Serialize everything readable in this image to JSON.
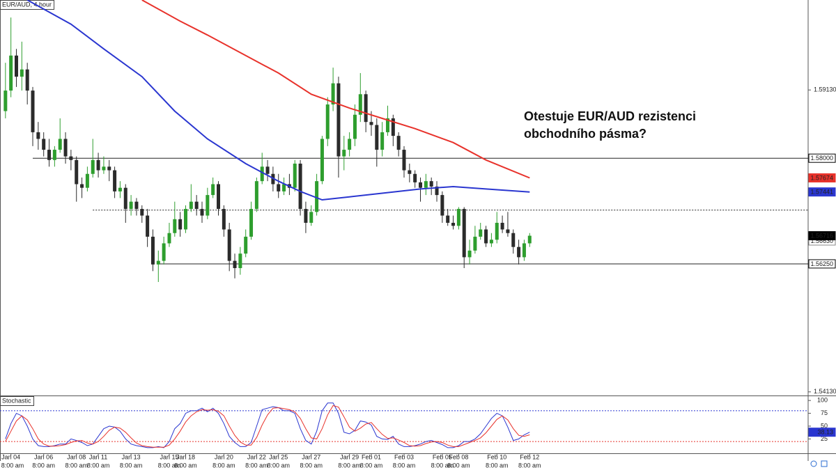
{
  "chart_data": [
    {
      "type": "candlestick",
      "title": "EUR/AUD, 4 hour",
      "annotation": [
        "Otestuje EUR/AUD rezistenci",
        "obchodního pásma?"
      ],
      "open": [
        1.5878,
        1.5912,
        1.597,
        1.5935,
        1.5947,
        1.5912,
        1.5843,
        1.5832,
        1.5814,
        1.5797,
        1.5814,
        1.5832,
        1.5803,
        1.5797,
        1.5757,
        1.5751,
        1.5774,
        1.5797,
        1.578,
        1.5786,
        1.578,
        1.5745,
        1.5751,
        1.5716,
        1.5728,
        1.5716,
        1.5705,
        1.567,
        1.5624,
        1.563,
        1.5659,
        1.5676,
        1.5699,
        1.5682,
        1.5716,
        1.5728,
        1.5716,
        1.5705,
        1.5739,
        1.5757,
        1.5716,
        1.5682,
        1.563,
        1.5618,
        1.5642,
        1.567,
        1.5716,
        1.5762,
        1.5786,
        1.5774,
        1.5757,
        1.5745,
        1.5757,
        1.5751,
        1.5791,
        1.5716,
        1.5693,
        1.5711,
        1.5762,
        1.5832,
        1.5889,
        1.5924,
        1.5803,
        1.5814,
        1.5832,
        1.5872,
        1.5906,
        1.586,
        1.5855,
        1.5814,
        1.5843,
        1.5866,
        1.5837,
        1.5814,
        1.578,
        1.5774,
        1.576,
        1.5751,
        1.5762,
        1.5753,
        1.5739,
        1.5705,
        1.5693,
        1.5688,
        1.5716,
        1.5636,
        1.5647,
        1.567,
        1.5682,
        1.5659,
        1.5665,
        1.5693,
        1.5682,
        1.5676,
        1.5653,
        1.5636,
        1.5659
      ],
      "high": [
        1.5958,
        1.6033,
        1.5981,
        1.5993,
        1.5958,
        1.5918,
        1.586,
        1.5843,
        1.5832,
        1.582,
        1.5866,
        1.5843,
        1.5814,
        1.5803,
        1.5768,
        1.5786,
        1.5832,
        1.5809,
        1.5803,
        1.5797,
        1.5786,
        1.5762,
        1.5757,
        1.5739,
        1.5734,
        1.5722,
        1.5716,
        1.5682,
        1.5647,
        1.567,
        1.5693,
        1.5728,
        1.5711,
        1.5722,
        1.5757,
        1.5739,
        1.5728,
        1.5751,
        1.5768,
        1.5762,
        1.5722,
        1.5693,
        1.5642,
        1.5653,
        1.5682,
        1.5728,
        1.5768,
        1.5809,
        1.5797,
        1.5786,
        1.5774,
        1.5768,
        1.5774,
        1.5797,
        1.5797,
        1.5728,
        1.5722,
        1.5774,
        1.5837,
        1.5901,
        1.595,
        1.5935,
        1.5837,
        1.5843,
        1.5889,
        1.5941,
        1.5912,
        1.5878,
        1.5866,
        1.586,
        1.5887,
        1.5872,
        1.5843,
        1.582,
        1.5791,
        1.578,
        1.5768,
        1.5774,
        1.5768,
        1.5762,
        1.5745,
        1.5716,
        1.5705,
        1.5719,
        1.5719,
        1.5665,
        1.5688,
        1.5693,
        1.5688,
        1.5676,
        1.5711,
        1.5705,
        1.5711,
        1.5682,
        1.5665,
        1.5665,
        1.5676
      ],
      "low": [
        1.5866,
        1.5901,
        1.5918,
        1.5912,
        1.5889,
        1.582,
        1.5814,
        1.5803,
        1.5786,
        1.5786,
        1.5809,
        1.5791,
        1.578,
        1.5728,
        1.5734,
        1.5745,
        1.5768,
        1.5768,
        1.5774,
        1.5762,
        1.5734,
        1.5734,
        1.5693,
        1.5705,
        1.5705,
        1.5693,
        1.5653,
        1.5613,
        1.5595,
        1.5624,
        1.5653,
        1.567,
        1.567,
        1.5676,
        1.5711,
        1.5705,
        1.5693,
        1.5699,
        1.5734,
        1.5705,
        1.567,
        1.5613,
        1.5601,
        1.5607,
        1.5636,
        1.5665,
        1.5711,
        1.5757,
        1.5762,
        1.5745,
        1.5734,
        1.5739,
        1.5739,
        1.5745,
        1.5705,
        1.5676,
        1.5688,
        1.5705,
        1.5757,
        1.582,
        1.5878,
        1.5768,
        1.578,
        1.5803,
        1.582,
        1.586,
        1.5843,
        1.5837,
        1.5786,
        1.5803,
        1.5837,
        1.582,
        1.5803,
        1.5768,
        1.576,
        1.5751,
        1.5728,
        1.5739,
        1.5739,
        1.5728,
        1.5693,
        1.5688,
        1.5682,
        1.5682,
        1.5618,
        1.5624,
        1.5642,
        1.5665,
        1.5653,
        1.5653,
        1.5659,
        1.5676,
        1.567,
        1.5642,
        1.5624,
        1.563,
        1.5653
      ],
      "close": [
        1.5912,
        1.597,
        1.5935,
        1.5947,
        1.5912,
        1.5843,
        1.5832,
        1.5814,
        1.5797,
        1.5814,
        1.5832,
        1.5803,
        1.5797,
        1.5757,
        1.5751,
        1.5774,
        1.5797,
        1.578,
        1.5786,
        1.578,
        1.5745,
        1.5751,
        1.5716,
        1.5728,
        1.5716,
        1.5705,
        1.567,
        1.5624,
        1.563,
        1.5659,
        1.5676,
        1.5699,
        1.5682,
        1.5716,
        1.5728,
        1.5716,
        1.5705,
        1.5739,
        1.5757,
        1.5716,
        1.5682,
        1.563,
        1.5618,
        1.5642,
        1.567,
        1.5716,
        1.5762,
        1.5786,
        1.5774,
        1.5757,
        1.5745,
        1.5757,
        1.5751,
        1.5791,
        1.5716,
        1.5693,
        1.5711,
        1.5762,
        1.5832,
        1.5889,
        1.5924,
        1.5803,
        1.5814,
        1.5832,
        1.5872,
        1.5906,
        1.586,
        1.5855,
        1.5814,
        1.5843,
        1.5866,
        1.5837,
        1.5814,
        1.578,
        1.5774,
        1.576,
        1.5751,
        1.5762,
        1.5753,
        1.5739,
        1.5705,
        1.5693,
        1.5688,
        1.5716,
        1.5636,
        1.5647,
        1.567,
        1.5682,
        1.5659,
        1.5665,
        1.5693,
        1.5682,
        1.5676,
        1.5653,
        1.5636,
        1.5659,
        1.56716
      ],
      "up_color": "#2e9e2e",
      "down_color": "#2b2b2b",
      "lines": [
        {
          "color": "#e8322b",
          "x": [
            25,
            32,
            37,
            44,
            50,
            56,
            63,
            69,
            75,
            82,
            88,
            96
          ],
          "values": [
            1.6062,
            1.6027,
            1.6004,
            1.597,
            1.5941,
            1.5906,
            1.5883,
            1.5866,
            1.5849,
            1.5826,
            1.5797,
            1.57674
          ]
        },
        {
          "color": "#2a36d0",
          "x": [
            4,
            12,
            18,
            25,
            31,
            37,
            44,
            50,
            54,
            58,
            63,
            69,
            76,
            82,
            88,
            96
          ],
          "values": [
            1.6062,
            1.6022,
            1.5981,
            1.5935,
            1.5878,
            1.5832,
            1.5791,
            1.5762,
            1.5745,
            1.5731,
            1.5736,
            1.5742,
            1.5749,
            1.5753,
            1.5749,
            1.57441
          ]
        }
      ],
      "levels": [
        {
          "value": 1.58,
          "label": "1.58000",
          "from": 5,
          "style": "solid"
        },
        {
          "value": 1.5714,
          "from": 16,
          "style": "dotted"
        },
        {
          "value": 1.5625,
          "label": "1.56250",
          "from": 28,
          "style": "solid"
        }
      ],
      "price_labels": [
        {
          "value": 1.5663,
          "label": "1.56630"
        }
      ],
      "xlim": [
        -1,
        147
      ],
      "ylim": [
        1.5407,
        1.6062
      ],
      "yticks": [
        {
          "value": 1.5913,
          "label": "1.59130"
        },
        {
          "value": 1.5413,
          "label": "1.54130"
        }
      ]
    },
    {
      "type": "line",
      "title": "Stochastic",
      "series": [
        {
          "color": "#2a36d0",
          "values": [
            25,
            55,
            75,
            70,
            50,
            25,
            12,
            10,
            10,
            12,
            15,
            15,
            25,
            22,
            18,
            12,
            15,
            30,
            45,
            50,
            48,
            40,
            25,
            15,
            12,
            10,
            8,
            8,
            10,
            8,
            20,
            45,
            55,
            75,
            80,
            80,
            85,
            78,
            85,
            75,
            55,
            30,
            18,
            10,
            10,
            18,
            50,
            82,
            85,
            88,
            86,
            80,
            80,
            75,
            45,
            22,
            15,
            40,
            80,
            95,
            95,
            75,
            38,
            35,
            42,
            60,
            58,
            52,
            30,
            25,
            24,
            30,
            15,
            10,
            10,
            12,
            15,
            20,
            22,
            18,
            14,
            8,
            8,
            12,
            20,
            20,
            25,
            35,
            50,
            65,
            75,
            70,
            48,
            22,
            25,
            33,
            38.13
          ]
        },
        {
          "color": "#e8322b",
          "values": [
            20,
            40,
            60,
            70,
            62,
            45,
            25,
            15,
            11,
            11,
            12,
            14,
            18,
            21,
            22,
            17,
            15,
            20,
            30,
            42,
            48,
            46,
            38,
            27,
            17,
            12,
            10,
            9,
            9,
            9,
            13,
            25,
            40,
            58,
            70,
            78,
            82,
            81,
            82,
            79,
            70,
            50,
            32,
            19,
            13,
            13,
            28,
            52,
            72,
            85,
            86,
            84,
            82,
            78,
            65,
            45,
            27,
            25,
            45,
            72,
            90,
            87,
            68,
            48,
            40,
            46,
            54,
            57,
            45,
            34,
            26,
            27,
            23,
            18,
            12,
            11,
            12,
            16,
            19,
            20,
            18,
            13,
            10,
            10,
            14,
            18,
            22,
            27,
            37,
            50,
            63,
            70,
            62,
            45,
            32,
            30,
            33
          ]
        }
      ],
      "levels": [
        {
          "value": 80,
          "color": "#2a36d0"
        },
        {
          "value": 20,
          "color": "#e8322b"
        }
      ],
      "xlim": [
        -1,
        147
      ],
      "ylim": [
        -3,
        107
      ],
      "yticks": [
        100,
        75,
        50,
        25
      ],
      "xticks": [
        {
          "value": 1,
          "label": "Jan 04"
        },
        {
          "value": 7,
          "label": "Jan 06"
        },
        {
          "value": 13,
          "label": "Jan 08"
        },
        {
          "value": 17,
          "label": "Jan 11"
        },
        {
          "value": 23,
          "label": "Jan 13"
        },
        {
          "value": 30,
          "label": "Jan 15"
        },
        {
          "value": 33,
          "label": "Jan 18"
        },
        {
          "value": 40,
          "label": "Jan 20"
        },
        {
          "value": 46,
          "label": "Jan 22"
        },
        {
          "value": 50,
          "label": "Jan 25"
        },
        {
          "value": 56,
          "label": "Jan 27"
        },
        {
          "value": 63,
          "label": "Jan 29"
        },
        {
          "value": 67,
          "label": "Feb 01"
        },
        {
          "value": 73,
          "label": "Feb 03"
        },
        {
          "value": 80,
          "label": "Feb 05"
        },
        {
          "value": 83,
          "label": "Feb 08"
        },
        {
          "value": 90,
          "label": "Feb 10"
        },
        {
          "value": 96,
          "label": "Feb 12"
        }
      ],
      "xtick_sublabel": "8:00 am"
    }
  ]
}
